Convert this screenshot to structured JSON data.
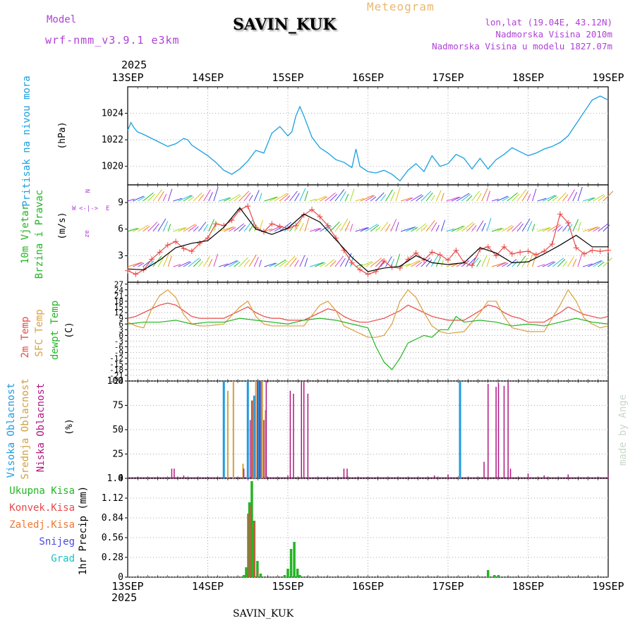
{
  "header": {
    "model_label": "Model",
    "model_version": "wrf-nmm_v3.9.1  e3km",
    "station": "SAVIN_KUK",
    "product": "Meteogram",
    "lonlat": "lon,lat (19.04E, 43.12N)",
    "altitude": "Nadmorska Visina 2010m",
    "model_altitude": "Nadmorska Visina u modelu 1827.07m",
    "year": "2025"
  },
  "footer": {
    "station": "SAVIN_KUK",
    "credit": "made by Angel"
  },
  "colors": {
    "pressure": "#1aa0e0",
    "wind_green": "#22b522",
    "temp": "#e84848",
    "sfc": "#d8a040",
    "dew": "#22b522",
    "high": "#1e9be0",
    "mid": "#d0a040",
    "low": "#b01880",
    "precip": "#22b522",
    "conv": "#e84848",
    "frozen": "#f07830",
    "snow": "#4848e0",
    "hail": "#20c0c0",
    "purple": "#b040d8"
  },
  "chart_data": [
    {
      "type": "line",
      "title": "Pritisak na nivou mora",
      "ylabel": "(hPa)",
      "xticks": [
        "13SEP",
        "14SEP",
        "15SEP",
        "16SEP",
        "17SEP",
        "18SEP",
        "19SEP"
      ],
      "yticks": [
        "1020",
        "1022",
        "1024"
      ],
      "ylim": [
        1018.6,
        1026.0
      ],
      "series": [
        {
          "name": "Pritisak",
          "x_days": [
            0,
            0.04,
            0.08,
            0.12,
            0.2,
            0.3,
            0.4,
            0.5,
            0.6,
            0.7,
            0.75,
            0.8,
            0.9,
            1.0,
            1.1,
            1.2,
            1.3,
            1.4,
            1.5,
            1.6,
            1.7,
            1.8,
            1.9,
            2.0,
            2.05,
            2.1,
            2.15,
            2.2,
            2.3,
            2.4,
            2.5,
            2.6,
            2.7,
            2.8,
            2.85,
            2.9,
            3.0,
            3.1,
            3.2,
            3.3,
            3.4,
            3.5,
            3.6,
            3.7,
            3.8,
            3.9,
            4.0,
            4.1,
            4.2,
            4.3,
            4.4,
            4.5,
            4.6,
            4.7,
            4.8,
            4.9,
            5.0,
            5.1,
            5.2,
            5.3,
            5.4,
            5.5,
            5.6,
            5.7,
            5.8,
            5.9,
            6.0
          ],
          "values": [
            1022.7,
            1023.3,
            1022.9,
            1022.6,
            1022.4,
            1022.1,
            1021.8,
            1021.5,
            1021.7,
            1022.1,
            1022.0,
            1021.6,
            1021.2,
            1020.8,
            1020.3,
            1019.7,
            1019.4,
            1019.8,
            1020.4,
            1021.2,
            1021.0,
            1022.5,
            1023.0,
            1022.3,
            1022.6,
            1023.8,
            1024.5,
            1023.8,
            1022.2,
            1021.4,
            1021.0,
            1020.5,
            1020.3,
            1019.9,
            1021.3,
            1020.0,
            1019.6,
            1019.5,
            1019.7,
            1019.4,
            1018.9,
            1019.7,
            1020.2,
            1019.6,
            1020.8,
            1020.0,
            1020.2,
            1020.9,
            1020.6,
            1019.8,
            1020.6,
            1019.8,
            1020.5,
            1020.9,
            1021.4,
            1021.1,
            1020.8,
            1021.0,
            1021.3,
            1021.5,
            1021.8,
            1022.3,
            1023.2,
            1024.1,
            1025.0,
            1025.3,
            1025.0
          ]
        }
      ]
    },
    {
      "type": "line",
      "title": "10m Vjetar Brzina i Pravac",
      "ylabel": "(m/s)",
      "legend": "N, S, W, E, az",
      "xticks": [
        "13SEP",
        "14SEP",
        "15SEP",
        "16SEP",
        "17SEP",
        "18SEP",
        "19SEP"
      ],
      "yticks": [
        "3",
        "6",
        "9"
      ],
      "ylim": [
        0,
        11
      ],
      "series": [
        {
          "name": "Brzina",
          "color": "#e84848",
          "x_days": [
            0,
            0.1,
            0.2,
            0.3,
            0.4,
            0.5,
            0.6,
            0.7,
            0.8,
            0.9,
            1.0,
            1.1,
            1.2,
            1.3,
            1.4,
            1.5,
            1.6,
            1.7,
            1.8,
            1.9,
            2.0,
            2.1,
            2.2,
            2.3,
            2.4,
            2.5,
            2.6,
            2.7,
            2.8,
            2.9,
            3.0,
            3.1,
            3.2,
            3.3,
            3.4,
            3.5,
            3.6,
            3.7,
            3.8,
            3.9,
            4.0,
            4.1,
            4.2,
            4.3,
            4.4,
            4.5,
            4.6,
            4.7,
            4.8,
            4.9,
            5.0,
            5.1,
            5.2,
            5.3,
            5.4,
            5.5,
            5.6,
            5.7,
            5.8,
            5.9,
            6.0
          ],
          "values": [
            1.3,
            0.9,
            1.4,
            2.6,
            3.4,
            4.2,
            4.6,
            3.8,
            3.5,
            4.4,
            5.0,
            6.6,
            6.4,
            7.0,
            8.2,
            8.6,
            6.2,
            5.7,
            6.6,
            6.3,
            6.1,
            6.4,
            7.6,
            8.2,
            7.4,
            6.4,
            5.0,
            3.6,
            2.2,
            1.4,
            0.9,
            1.2,
            2.4,
            1.7,
            1.6,
            2.6,
            3.3,
            2.5,
            3.4,
            3.1,
            2.5,
            3.6,
            2.2,
            1.9,
            3.7,
            4.0,
            3.0,
            4.0,
            3.2,
            3.4,
            3.5,
            3.1,
            3.5,
            4.3,
            7.7,
            6.7,
            3.9,
            3.2,
            3.6,
            3.5,
            3.6
          ]
        },
        {
          "name": "Model",
          "color": "#000000",
          "x_days": [
            0,
            0.2,
            0.4,
            0.6,
            0.8,
            1.0,
            1.2,
            1.4,
            1.6,
            1.8,
            2.0,
            2.2,
            2.4,
            2.6,
            2.8,
            3.0,
            3.2,
            3.4,
            3.6,
            3.8,
            4.0,
            4.2,
            4.4,
            4.6,
            4.8,
            5.0,
            5.2,
            5.4,
            5.6,
            5.8,
            6.0
          ],
          "values": [
            1.5,
            1.4,
            2.5,
            3.9,
            4.4,
            4.7,
            6.2,
            8.4,
            6.0,
            5.4,
            6.1,
            7.7,
            6.8,
            4.8,
            2.8,
            1.2,
            1.6,
            1.8,
            3.0,
            2.2,
            2.0,
            2.2,
            3.9,
            3.3,
            2.2,
            2.3,
            3.2,
            4.2,
            5.3,
            4.0,
            4.0
          ]
        }
      ]
    },
    {
      "type": "line",
      "title": "2m Temp / SFC Temp / dewpt Temp",
      "ylabel": "(C)",
      "xticks": [
        "13SEP",
        "14SEP",
        "15SEP",
        "16SEP",
        "17SEP",
        "18SEP",
        "19SEP"
      ],
      "yticks": [
        "-24",
        "-21",
        "-18",
        "-15",
        "-12",
        "-9",
        "-6",
        "-3",
        "0",
        "3",
        "6",
        "9",
        "12",
        "15",
        "18",
        "21",
        "24",
        "27"
      ],
      "ylim": [
        -24,
        28
      ],
      "series": [
        {
          "name": "2m Temp",
          "color": "#e84848",
          "x_days": [
            0,
            0.1,
            0.2,
            0.3,
            0.4,
            0.5,
            0.6,
            0.7,
            0.8,
            0.9,
            1.0,
            1.2,
            1.4,
            1.5,
            1.6,
            1.7,
            1.8,
            1.9,
            2.0,
            2.2,
            2.4,
            2.5,
            2.6,
            2.7,
            2.8,
            2.9,
            3.0,
            3.2,
            3.4,
            3.5,
            3.6,
            3.7,
            3.8,
            3.9,
            4.0,
            4.2,
            4.4,
            4.5,
            4.6,
            4.7,
            4.8,
            4.9,
            5.0,
            5.2,
            5.4,
            5.5,
            5.6,
            5.7,
            5.8,
            5.9,
            6.0
          ],
          "values": [
            9,
            10,
            12,
            14,
            16,
            17,
            16,
            13,
            10,
            9,
            9,
            9,
            13,
            15,
            12,
            10,
            9,
            9,
            8,
            8,
            12,
            14,
            13,
            10,
            8,
            7,
            7,
            9,
            13,
            16,
            14,
            12,
            10,
            9,
            8,
            8,
            13,
            16,
            15,
            12,
            10,
            9,
            7,
            7,
            12,
            15,
            13,
            11,
            10,
            9,
            10
          ]
        },
        {
          "name": "SFC Temp",
          "color": "#d8a040",
          "x_days": [
            0,
            0.1,
            0.2,
            0.3,
            0.4,
            0.5,
            0.6,
            0.7,
            0.8,
            0.9,
            1.0,
            1.2,
            1.4,
            1.5,
            1.6,
            1.7,
            1.8,
            1.9,
            2.0,
            2.2,
            2.4,
            2.5,
            2.6,
            2.7,
            2.8,
            2.9,
            3.0,
            3.1,
            3.2,
            3.3,
            3.4,
            3.5,
            3.6,
            3.7,
            3.8,
            3.9,
            4.0,
            4.2,
            4.4,
            4.5,
            4.6,
            4.7,
            4.8,
            4.9,
            5.0,
            5.2,
            5.4,
            5.5,
            5.6,
            5.7,
            5.8,
            5.9,
            6.0
          ],
          "values": [
            7,
            5,
            4,
            14,
            21,
            24,
            20,
            11,
            6,
            5,
            5,
            6,
            15,
            18,
            10,
            6,
            5,
            5,
            5,
            5,
            16,
            18,
            13,
            5,
            3,
            1,
            -1,
            -1,
            0,
            6,
            18,
            24,
            20,
            12,
            5,
            2,
            1,
            2,
            12,
            18,
            18,
            10,
            4,
            3,
            2,
            2,
            16,
            24,
            18,
            9,
            6,
            4,
            5
          ]
        },
        {
          "name": "dewpt Temp",
          "color": "#22b522",
          "x_days": [
            0,
            0.2,
            0.4,
            0.6,
            0.8,
            1.0,
            1.2,
            1.4,
            1.6,
            1.8,
            2.0,
            2.2,
            2.4,
            2.6,
            2.8,
            3.0,
            3.1,
            3.2,
            3.3,
            3.4,
            3.5,
            3.6,
            3.7,
            3.8,
            3.9,
            4.0,
            4.1,
            4.2,
            4.4,
            4.6,
            4.8,
            5.0,
            5.2,
            5.4,
            5.6,
            5.8,
            6.0
          ],
          "values": [
            6,
            7,
            7,
            8,
            6,
            7,
            7,
            9,
            8,
            7,
            6,
            8,
            9,
            8,
            6,
            4,
            -6,
            -14,
            -18,
            -12,
            -4,
            -2,
            0,
            -1,
            3,
            3,
            10,
            7,
            8,
            7,
            5,
            6,
            5,
            7,
            9,
            7,
            6
          ]
        }
      ]
    },
    {
      "type": "bar",
      "title": "Visoka / Srednja / Niska Oblacnost",
      "ylabel": "(%)",
      "xticks": [
        "13SEP",
        "14SEP",
        "15SEP",
        "16SEP",
        "17SEP",
        "18SEP",
        "19SEP"
      ],
      "yticks": [
        "0",
        "25",
        "50",
        "75",
        "100"
      ],
      "ylim": [
        0,
        100
      ],
      "series": [
        {
          "name": "Visoka Oblacnost",
          "color": "#1e9be0",
          "x_days": [
            1.2,
            1.5,
            1.58,
            1.63,
            1.67,
            4.15
          ],
          "values": [
            100,
            100,
            85,
            100,
            100,
            100
          ]
        },
        {
          "name": "Srednja Oblacnost",
          "color": "#d0a040",
          "x_days": [
            1.25,
            1.32,
            1.44,
            1.56,
            1.6,
            1.68,
            1.72
          ],
          "values": [
            90,
            100,
            15,
            80,
            100,
            100,
            70
          ]
        },
        {
          "name": "Niska Oblacnost",
          "color": "#b01880",
          "x_days": [
            0.55,
            0.58,
            0.7,
            1.45,
            1.53,
            1.55,
            1.62,
            1.65,
            1.7,
            1.73,
            2.0,
            2.03,
            2.07,
            2.17,
            2.2,
            2.25,
            2.7,
            2.74,
            3.83,
            4.0,
            4.45,
            4.5,
            4.6,
            4.63,
            4.7,
            4.75,
            4.78,
            5.0,
            5.2,
            5.5,
            6.0
          ],
          "values": [
            10,
            10,
            3,
            10,
            60,
            80,
            100,
            100,
            60,
            100,
            3,
            90,
            87,
            100,
            100,
            87,
            10,
            10,
            3,
            4,
            17,
            97,
            94,
            98,
            95,
            100,
            10,
            5,
            3,
            4,
            4
          ]
        }
      ]
    },
    {
      "type": "bar",
      "title": "1hr Precip",
      "ylabel": "(mm)",
      "legend": [
        "Ukupna Kisa",
        "Konvek.Kisa",
        "Zaledj.Kisa",
        "Snijeg",
        "Grad"
      ],
      "xticks": [
        "13SEP",
        "14SEP",
        "15SEP",
        "16SEP",
        "17SEP",
        "18SEP",
        "19SEP"
      ],
      "yticks": [
        "0",
        "0.28",
        "0.56",
        "0.84",
        "1.12",
        "1.4"
      ],
      "ylim": [
        0,
        1.4
      ],
      "series": [
        {
          "name": "Ukupna Kisa",
          "color": "#22b522",
          "x_days": [
            1.45,
            1.48,
            1.52,
            1.55,
            1.58,
            1.62,
            1.66,
            1.96,
            2.0,
            2.04,
            2.08,
            2.12,
            2.15,
            4.5,
            4.58,
            4.63
          ],
          "values": [
            0.03,
            0.14,
            1.06,
            1.36,
            0.8,
            0.23,
            0.05,
            0.03,
            0.12,
            0.4,
            0.5,
            0.12,
            0.03,
            0.1,
            0.03,
            0.03
          ]
        },
        {
          "name": "Konvek.Kisa",
          "color": "#e84848",
          "x_days": [
            1.5,
            1.54,
            1.58,
            1.62
          ],
          "values": [
            0.9,
            1.02,
            0.78,
            0.1
          ]
        }
      ]
    }
  ]
}
